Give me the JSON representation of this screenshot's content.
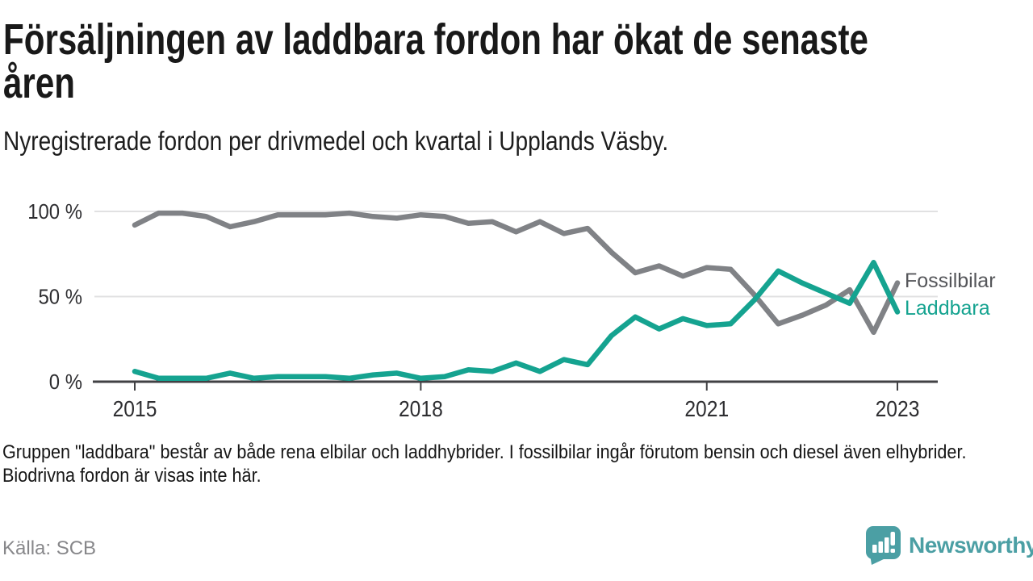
{
  "header": {
    "title_line1": "Försäljningen av laddbara fordon har ökat de senaste",
    "title_line2": "åren",
    "subtitle": "Nyregistrerade fordon per drivmedel och kvartal i Upplands Väsby."
  },
  "chart_data": {
    "type": "line",
    "x_start": "2015 Q1",
    "x_step": "quarter",
    "x_end": "2023 Q1",
    "x_tick_labels": [
      "2015",
      "2018",
      "2021",
      "2023"
    ],
    "x_tick_quarter_index": [
      0,
      12,
      24,
      32
    ],
    "y_ticks": [
      0,
      50,
      100
    ],
    "y_tick_labels": [
      "0 %",
      "50 %",
      "100 %"
    ],
    "ylim": [
      0,
      100
    ],
    "unit": "percent of newly registered vehicles",
    "grid": "horizontal",
    "legend_position": "right of line ends",
    "series": [
      {
        "name": "Fossilbilar",
        "color": "#808286",
        "label_color": "#55565a",
        "values": [
          92,
          99,
          99,
          97,
          91,
          94,
          98,
          98,
          98,
          99,
          97,
          96,
          98,
          97,
          93,
          94,
          88,
          94,
          87,
          90,
          76,
          64,
          68,
          62,
          67,
          66,
          51,
          34,
          39,
          45,
          54,
          29,
          58
        ]
      },
      {
        "name": "Laddbara",
        "color": "#15a390",
        "label_color": "#15a390",
        "values": [
          6,
          2,
          2,
          2,
          5,
          2,
          3,
          3,
          3,
          2,
          4,
          5,
          2,
          3,
          7,
          6,
          11,
          6,
          13,
          10,
          27,
          38,
          31,
          37,
          33,
          34,
          48,
          65,
          58,
          52,
          46,
          70,
          41
        ]
      }
    ]
  },
  "footer": {
    "note": "Gruppen \"laddbara\" består av både rena elbilar och laddhybrider. I fossilbilar ingår förutom bensin och diesel även elhybrider. Biodrivna fordon är visas inte här.",
    "source": "Källa: SCB",
    "brand": "Newsworthy"
  }
}
